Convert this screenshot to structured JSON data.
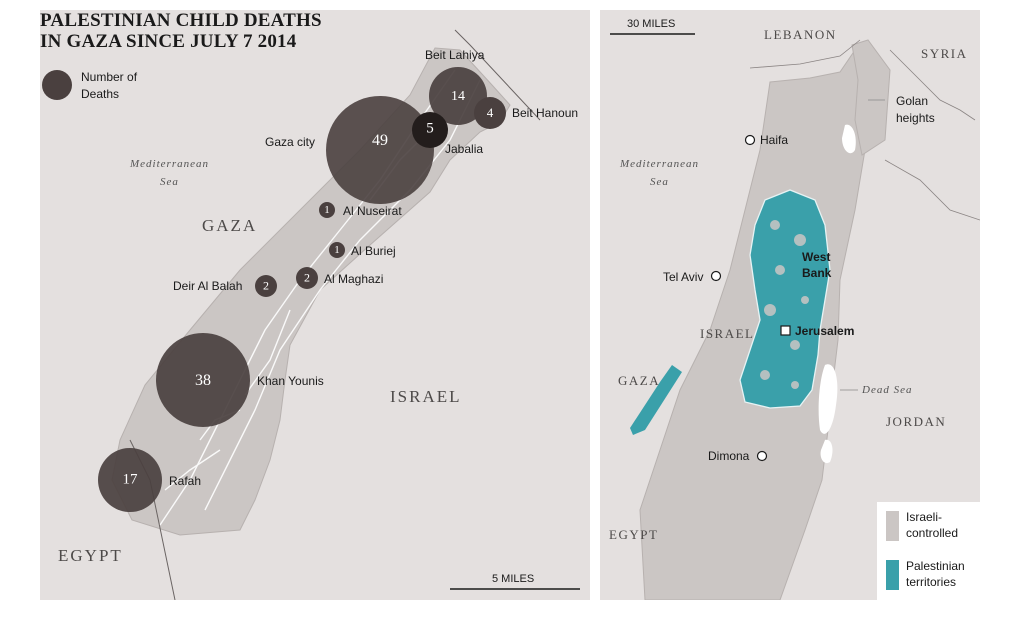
{
  "title": {
    "line1": "PALESTINIAN CHILD DEATHS",
    "line2": "IN GAZA SINCE JULY 7 2014"
  },
  "size_legend": {
    "label_line1": "Number of",
    "label_line2": "Deaths"
  },
  "left_map": {
    "sea_line1": "Mediterranean",
    "sea_line2": "Sea",
    "region_gaza": "GAZA",
    "region_israel": "ISRAEL",
    "region_egypt": "EGYPT",
    "scale_label": "5 MILES",
    "places": [
      {
        "name": "Beit Lahiya",
        "deaths": 14
      },
      {
        "name": "Beit Hanoun",
        "deaths": 4
      },
      {
        "name": "Gaza city",
        "deaths": 49
      },
      {
        "name": "Jabalia",
        "deaths": 5
      },
      {
        "name": "Al Nuseirat",
        "deaths": 1
      },
      {
        "name": "Al Buriej",
        "deaths": 1
      },
      {
        "name": "Al Maghazi",
        "deaths": 2
      },
      {
        "name": "Deir Al Balah",
        "deaths": 2
      },
      {
        "name": "Khan Younis",
        "deaths": 38
      },
      {
        "name": "Rafah",
        "deaths": 17
      }
    ]
  },
  "right_map": {
    "scale_label": "30 MILES",
    "lebanon": "LEBANON",
    "syria": "SYRIA",
    "golan_line1": "Golan",
    "golan_line2": "heights",
    "haifa": "Haifa",
    "sea_line1": "Mediterranean",
    "sea_line2": "Sea",
    "tel_aviv": "Tel Aviv",
    "west_bank_line1": "West",
    "west_bank_line2": "Bank",
    "jerusalem": "Jerusalem",
    "israel": "ISRAEL",
    "gaza": "GAZA",
    "dead_sea": "Dead Sea",
    "jordan": "JORDAN",
    "dimona": "Dimona",
    "egypt": "EGYPT"
  },
  "territory_legend": {
    "israeli_line1": "Israeli-",
    "israeli_line2": "controlled",
    "palestinian_line1": "Palestinian",
    "palestinian_line2": "territories"
  },
  "colors": {
    "bubble": "#4a403f",
    "bubble_dark": "#231d1c",
    "israeli_controlled": "#cbc6c4",
    "palestinian": "#3aa0aa",
    "background": "#e4e0df"
  }
}
